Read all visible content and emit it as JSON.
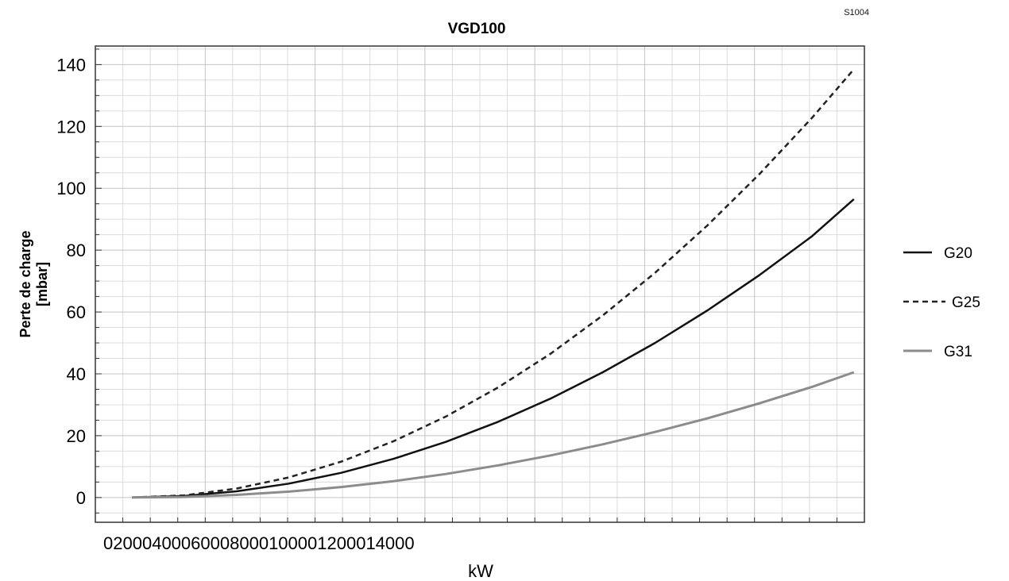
{
  "code_label": "S1004",
  "chart_data": {
    "type": "line",
    "title": "VGD100",
    "xlabel": "kW",
    "ylabel_lines": [
      "Perte de charge",
      "[mbar]"
    ],
    "x_tick_labels": [
      "0",
      "2000",
      "4000",
      "6000",
      "8000",
      "10000",
      "12000",
      "14000"
    ],
    "x_tick_values": [
      0,
      2000,
      4000,
      6000,
      8000,
      10000,
      12000,
      14000
    ],
    "xlim": [
      -700,
      14000
    ],
    "y_tick_labels": [
      "0",
      "20",
      "40",
      "60",
      "80",
      "100",
      "120",
      "140"
    ],
    "y_tick_values": [
      0,
      20,
      40,
      60,
      80,
      100,
      120,
      140
    ],
    "ylim": [
      -8,
      146
    ],
    "grid": true,
    "legend_position": "right",
    "series": [
      {
        "name": "G20",
        "color": "#111111",
        "style": "solid",
        "x": [
          0,
          1000,
          2000,
          3000,
          4000,
          5000,
          6000,
          7000,
          8000,
          9000,
          10000,
          11000,
          12000,
          13000,
          13800
        ],
        "y": [
          0,
          0.5,
          2,
          4.5,
          8,
          12.5,
          18,
          24.5,
          32,
          40.5,
          50,
          60.5,
          72,
          84.5,
          96.5
        ]
      },
      {
        "name": "G25",
        "color": "#222222",
        "style": "dashed",
        "x": [
          0,
          1000,
          2000,
          3000,
          4000,
          5000,
          6000,
          7000,
          8000,
          9000,
          10000,
          11000,
          12000,
          13000,
          13800
        ],
        "y": [
          0,
          0.7,
          2.9,
          6.5,
          11.6,
          18.2,
          26.2,
          35.6,
          46.5,
          58.9,
          72.7,
          88,
          104.7,
          122.8,
          138.5
        ]
      },
      {
        "name": "G31",
        "color": "#8c8c8c",
        "style": "solid",
        "x": [
          0,
          1000,
          2000,
          3000,
          4000,
          5000,
          6000,
          7000,
          8000,
          9000,
          10000,
          11000,
          12000,
          13000,
          13800
        ],
        "y": [
          0,
          0.2,
          0.85,
          1.9,
          3.4,
          5.3,
          7.6,
          10.4,
          13.6,
          17.2,
          21.2,
          25.6,
          30.5,
          35.8,
          40.5
        ]
      }
    ]
  }
}
